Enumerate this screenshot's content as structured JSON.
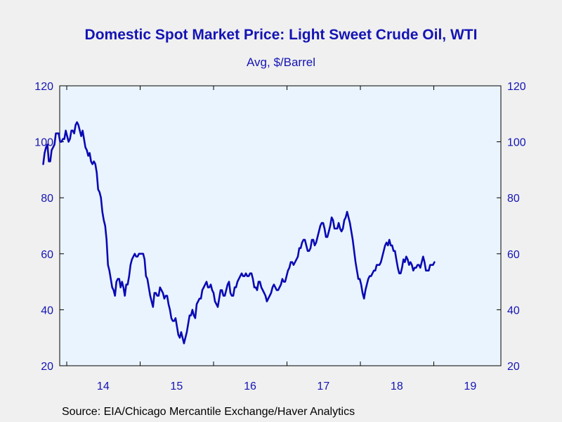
{
  "chart_data": {
    "type": "line",
    "title": "Domestic Spot Market Price: Light Sweet Crude Oil, WTI",
    "subtitle": "Avg, $/Barrel",
    "source": "Source:  EIA/Chicago Mercantile Exchange/Haver Analytics",
    "ylim": [
      20,
      120
    ],
    "y_ticks": [
      20,
      40,
      60,
      80,
      100,
      120
    ],
    "y_tick_labels": [
      "20",
      "40",
      "60",
      "80",
      "100",
      "120"
    ],
    "x_tick_labels": [
      "14",
      "15",
      "16",
      "17",
      "18",
      "19"
    ],
    "x_period": [
      "2013-09",
      "2019-10"
    ],
    "grid": false,
    "line_color": "#0a0ab4",
    "plot_bg": "#eaf4ff",
    "series": [
      {
        "x_start": "2013-09-06",
        "frequency": "weekly",
        "values": [
          92,
          96,
          98,
          99,
          93,
          93,
          97,
          98,
          99,
          103,
          103,
          103,
          100,
          100,
          101,
          101,
          104,
          102,
          100,
          101,
          104,
          104,
          103,
          106,
          107,
          106,
          104,
          102,
          104,
          101,
          98,
          97,
          95,
          96,
          93,
          92,
          93,
          92,
          89,
          83,
          82,
          80,
          75,
          72,
          70,
          65,
          56,
          54,
          51,
          48,
          47,
          45,
          50,
          51,
          51,
          48,
          50,
          48,
          45,
          49,
          49,
          52,
          56,
          58,
          59,
          60,
          59,
          59,
          60,
          60,
          60,
          60,
          58,
          52,
          51,
          48,
          45,
          43,
          41,
          46,
          46,
          45,
          45,
          48,
          47,
          46,
          44,
          45,
          45,
          42,
          40,
          37,
          36,
          36,
          37,
          34,
          31,
          30,
          32,
          30,
          28,
          30,
          32,
          35,
          38,
          38,
          40,
          38,
          37,
          42,
          43,
          44,
          44,
          47,
          48,
          49,
          50,
          48,
          48,
          49,
          47,
          46,
          43,
          42,
          41,
          44,
          47,
          47,
          45,
          45,
          47,
          49,
          50,
          46,
          45,
          45,
          48,
          48,
          50,
          51,
          52,
          53,
          52,
          52,
          53,
          52,
          52,
          53,
          53,
          51,
          48,
          48,
          47,
          50,
          50,
          48,
          47,
          46,
          45,
          43,
          44,
          45,
          46,
          48,
          49,
          48,
          47,
          47,
          48,
          49,
          51,
          50,
          50,
          52,
          54,
          55,
          57,
          57,
          56,
          57,
          58,
          59,
          62,
          62,
          64,
          65,
          65,
          63,
          61,
          61,
          62,
          65,
          65,
          63,
          64,
          66,
          68,
          70,
          71,
          71,
          69,
          66,
          66,
          68,
          70,
          73,
          72,
          69,
          69,
          69,
          71,
          69,
          68,
          69,
          72,
          73,
          75,
          73,
          71,
          68,
          65,
          61,
          57,
          54,
          51,
          51,
          49,
          46,
          44,
          47,
          49,
          51,
          52,
          52,
          53,
          54,
          54,
          56,
          56,
          56,
          57,
          59,
          61,
          63,
          64,
          63,
          65,
          63,
          63,
          61,
          61,
          58,
          55,
          53,
          53,
          55,
          58,
          57,
          59,
          58,
          56,
          57,
          56,
          54,
          55,
          55,
          56,
          56,
          55,
          57,
          59,
          57,
          54,
          54,
          54,
          56,
          56,
          56,
          57
        ]
      }
    ]
  }
}
